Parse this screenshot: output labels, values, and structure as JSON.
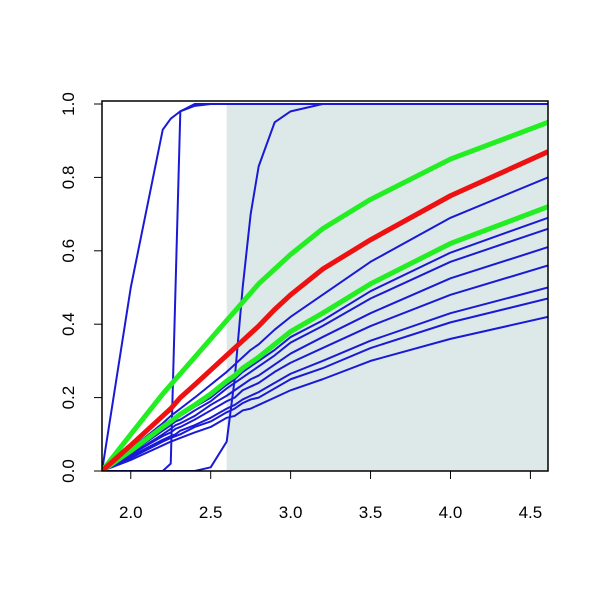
{
  "chart_data": {
    "type": "line",
    "x": [
      1.82,
      2.0,
      2.2,
      2.25,
      2.28,
      2.31,
      2.4,
      2.5,
      2.6,
      2.65,
      2.7,
      2.75,
      2.8,
      2.9,
      3.0,
      3.2,
      3.5,
      4.0,
      4.61
    ],
    "xlim": [
      1.82,
      4.61
    ],
    "ylim": [
      0,
      1
    ],
    "xticks": [
      {
        "value": 2,
        "label": "2.0"
      },
      2.5,
      {
        "value": 3,
        "label": "3.0"
      },
      3.5,
      {
        "value": 4,
        "label": "4.0"
      },
      4.5
    ],
    "yticks": [
      {
        "value": 0,
        "label": "0.0"
      },
      0.2,
      0.4,
      0.6,
      0.8,
      {
        "value": 1,
        "label": "1.0"
      }
    ],
    "shaded_x": [
      2.6,
      4.61
    ],
    "shade_color": "#dde9e9",
    "series": [
      {
        "color": "#1a1ad6",
        "width": 2,
        "values": [
          0,
          0.5,
          0.93,
          0.96,
          0.97,
          0.98,
          0.995,
          1,
          1,
          1,
          1,
          1,
          1,
          1,
          1,
          1,
          1,
          1,
          1
        ]
      },
      {
        "color": "#1a1ad6",
        "width": 2,
        "values": [
          0,
          0,
          0,
          0.02,
          0.5,
          0.98,
          1,
          1,
          1,
          1,
          1,
          1,
          1,
          1,
          1,
          1,
          1,
          1,
          1
        ]
      },
      {
        "color": "#1a1ad6",
        "width": 2,
        "values": [
          0,
          0,
          0,
          0,
          0,
          0,
          0,
          0.01,
          0.08,
          0.25,
          0.5,
          0.7,
          0.83,
          0.95,
          0.98,
          1,
          1,
          1,
          1
        ]
      },
      {
        "color": "#1a1ad6",
        "width": 2,
        "values": [
          0,
          0.06,
          0.13,
          0.15,
          0.16,
          0.17,
          0.2,
          0.235,
          0.27,
          0.29,
          0.31,
          0.33,
          0.345,
          0.385,
          0.42,
          0.48,
          0.57,
          0.69,
          0.8
        ]
      },
      {
        "color": "#1a1ad6",
        "width": 2,
        "values": [
          0,
          0.05,
          0.115,
          0.13,
          0.14,
          0.15,
          0.175,
          0.2,
          0.235,
          0.25,
          0.27,
          0.285,
          0.3,
          0.33,
          0.365,
          0.41,
          0.49,
          0.595,
          0.69
        ]
      },
      {
        "color": "#1a1ad6",
        "width": 2,
        "values": [
          0,
          0.05,
          0.11,
          0.125,
          0.135,
          0.14,
          0.165,
          0.19,
          0.225,
          0.24,
          0.255,
          0.27,
          0.285,
          0.315,
          0.35,
          0.395,
          0.47,
          0.57,
          0.66
        ]
      },
      {
        "color": "#1a1ad6",
        "width": 2,
        "values": [
          0,
          0.045,
          0.1,
          0.115,
          0.125,
          0.13,
          0.15,
          0.18,
          0.205,
          0.22,
          0.235,
          0.25,
          0.26,
          0.29,
          0.32,
          0.365,
          0.43,
          0.525,
          0.61
        ]
      },
      {
        "color": "#1a1ad6",
        "width": 2,
        "values": [
          0,
          0.045,
          0.095,
          0.105,
          0.115,
          0.12,
          0.14,
          0.165,
          0.19,
          0.2,
          0.22,
          0.23,
          0.24,
          0.27,
          0.295,
          0.335,
          0.395,
          0.48,
          0.56
        ]
      },
      {
        "color": "#1a1ad6",
        "width": 2,
        "values": [
          0,
          0.04,
          0.085,
          0.095,
          0.1,
          0.11,
          0.125,
          0.145,
          0.17,
          0.18,
          0.195,
          0.205,
          0.215,
          0.24,
          0.265,
          0.3,
          0.355,
          0.43,
          0.5
        ]
      },
      {
        "color": "#1a1ad6",
        "width": 2,
        "values": [
          0,
          0.035,
          0.08,
          0.09,
          0.095,
          0.1,
          0.12,
          0.135,
          0.16,
          0.17,
          0.185,
          0.195,
          0.2,
          0.225,
          0.25,
          0.28,
          0.335,
          0.405,
          0.47
        ]
      },
      {
        "color": "#1a1ad6",
        "width": 2,
        "values": [
          0,
          0.03,
          0.07,
          0.08,
          0.085,
          0.09,
          0.105,
          0.12,
          0.145,
          0.15,
          0.165,
          0.17,
          0.18,
          0.2,
          0.22,
          0.25,
          0.3,
          0.36,
          0.42
        ]
      },
      {
        "color": "#22ee22",
        "width": 5,
        "values": [
          0,
          0.055,
          0.12,
          0.135,
          0.145,
          0.155,
          0.18,
          0.21,
          0.245,
          0.26,
          0.28,
          0.295,
          0.31,
          0.345,
          0.38,
          0.43,
          0.51,
          0.62,
          0.72
        ]
      },
      {
        "color": "#22ee22",
        "width": 5,
        "values": [
          0,
          0.1,
          0.21,
          0.235,
          0.25,
          0.265,
          0.31,
          0.36,
          0.41,
          0.435,
          0.46,
          0.485,
          0.51,
          0.55,
          0.59,
          0.66,
          0.74,
          0.85,
          0.95
        ]
      },
      {
        "color": "#ee1111",
        "width": 5,
        "values": [
          0,
          0.07,
          0.15,
          0.17,
          0.185,
          0.2,
          0.235,
          0.275,
          0.315,
          0.335,
          0.355,
          0.375,
          0.395,
          0.44,
          0.48,
          0.55,
          0.63,
          0.75,
          0.87
        ]
      }
    ]
  }
}
